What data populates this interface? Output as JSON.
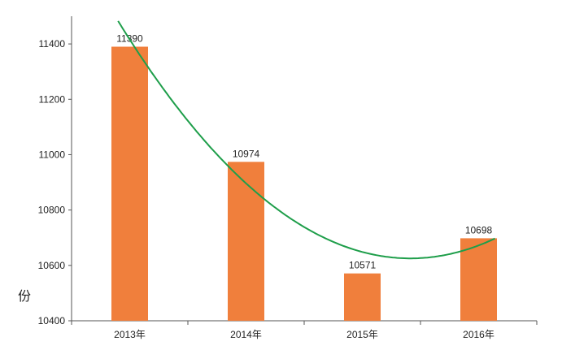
{
  "chart_data": {
    "type": "bar",
    "title": "",
    "xlabel": "",
    "ylabel": "份",
    "categories": [
      "2013年",
      "2014年",
      "2015年",
      "2016年"
    ],
    "values": [
      11390,
      10974,
      10571,
      10698
    ],
    "data_labels": [
      "11390",
      "10974",
      "10571",
      "10698"
    ],
    "ylim": [
      10400,
      11500
    ],
    "yticks": [
      10400,
      10600,
      10800,
      11000,
      11200,
      11400
    ],
    "grid": false,
    "legend": "none",
    "trendline": {
      "type": "polynomial",
      "order": 2,
      "color": "#1e9e4a"
    },
    "colors": {
      "bar": "#f07f3c",
      "axis": "#555555"
    }
  }
}
